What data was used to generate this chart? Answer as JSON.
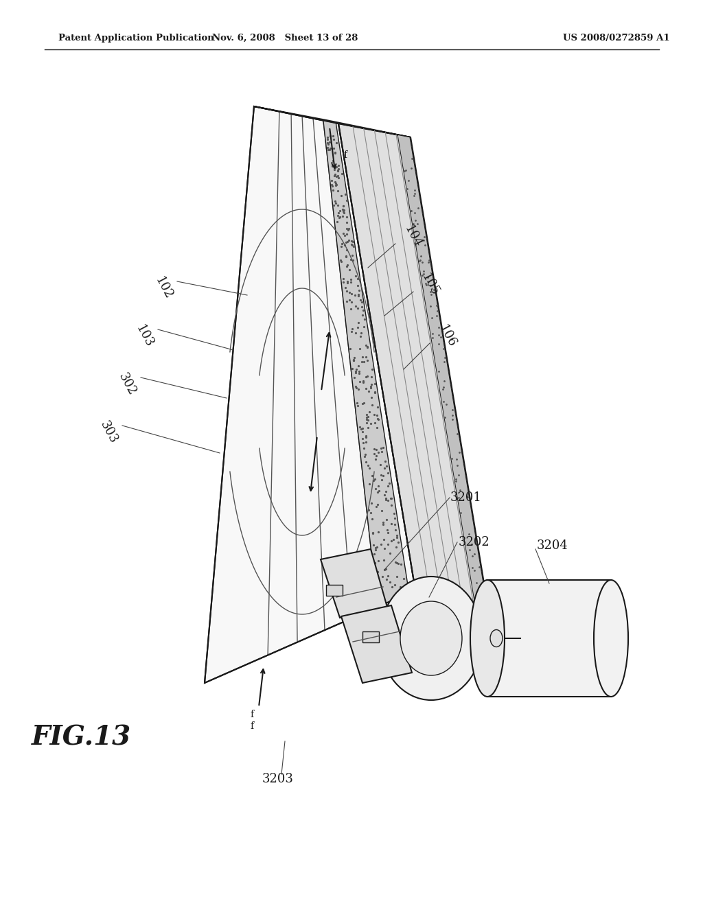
{
  "bg_color": "#ffffff",
  "header_left": "Patent Application Publication",
  "header_mid": "Nov. 6, 2008   Sheet 13 of 28",
  "header_right": "US 2008/0272859 A1",
  "fig_label": "FIG.13",
  "line_color": "#1a1a1a",
  "fill_light": "#f5f5f5",
  "fill_mid": "#e8e8e8",
  "fill_dark": "#d0d0d0",
  "stipple_color": "#888888",
  "label_color": "#1a1a1a"
}
